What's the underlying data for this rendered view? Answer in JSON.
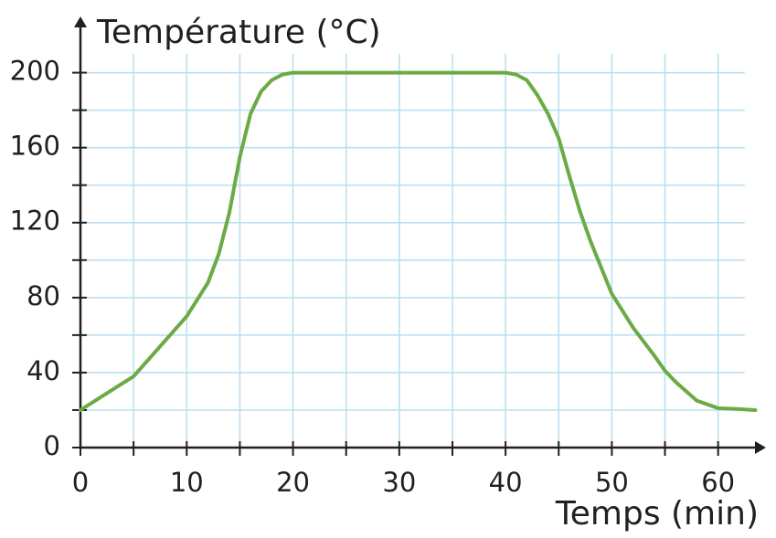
{
  "chart_data": {
    "type": "line",
    "y_label": "Température (°C)",
    "x_label": "Temps (min)",
    "xlim": [
      0,
      64.5
    ],
    "ylim": [
      0,
      230
    ],
    "xticks": [
      0,
      10,
      20,
      30,
      40,
      50,
      60
    ],
    "yticks": [
      0,
      40,
      80,
      120,
      160,
      200
    ],
    "x_minor_ticks": [
      5,
      15,
      25,
      35,
      45,
      55
    ],
    "y_minor_ticks": [
      20,
      60,
      100,
      140,
      180
    ],
    "grid": true,
    "grid_color": "#b7def0",
    "series": [
      {
        "color": "#6aab45",
        "x": [
          0,
          5,
          10,
          12,
          13,
          14,
          15,
          16,
          17,
          18,
          19,
          20,
          25,
          30,
          35,
          40,
          41,
          42,
          43,
          44,
          45,
          46,
          47,
          48,
          50,
          52,
          54,
          55,
          56,
          58,
          60,
          62,
          63.5
        ],
        "values": [
          20,
          38,
          70,
          88,
          103,
          125,
          155,
          178,
          190,
          196,
          199,
          200,
          200,
          200,
          200,
          200,
          199,
          196,
          188,
          178,
          165,
          145,
          126,
          110,
          82,
          64,
          49,
          41,
          35,
          25,
          21,
          20.5,
          20
        ]
      }
    ]
  }
}
